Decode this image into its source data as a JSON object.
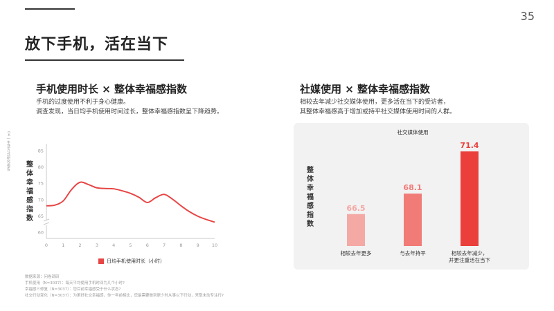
{
  "page": {
    "number": "35",
    "title": "放下手机，活在当下",
    "side_note": "04 | 生活方式研究报告"
  },
  "left": {
    "title": "手机使用时长 × 整体幸福感指数",
    "desc_lines": [
      "手机的过度使用不利于身心健康。",
      "调查发现，当日均手机使用时间过长，整体幸福感指数呈下降趋势。"
    ],
    "ylabel": "整体幸福感指数",
    "legend": "日均手机使用时长（小时）",
    "color": "#e84545"
  },
  "right": {
    "title": "社媒使用 × 整体幸福感指数",
    "desc_lines": [
      "相较去年减少社交媒体使用，更多活在当下的受访者，",
      "其整体幸福感高于增加或持平社交媒体使用时间的人群。"
    ],
    "ylabel": "整体幸福感指数"
  },
  "footnotes": [
    "数据来源：问卷调研",
    "手机使用（N=3037）：每天平均使用手机时间为几个小时?",
    "幸福感三修复（N=3037）：您目前幸福感受于什么状态?",
    "社交行动变化（N=3037）：为更好社交幸福感，你一年前相比，您最需要做到更少时从事以下行动，来取未动专注行?"
  ],
  "chart_data": [
    {
      "type": "line",
      "x": [
        0,
        0.5,
        1,
        1.5,
        2,
        2.5,
        3,
        3.5,
        4,
        4.5,
        5,
        5.5,
        6,
        6.5,
        7,
        7.5,
        8,
        8.5,
        9,
        9.5,
        10
      ],
      "series": [
        {
          "name": "日均手机使用时长（小时）",
          "values": [
            68,
            68.2,
            69.5,
            73,
            75.2,
            74.5,
            73.5,
            73.3,
            73.2,
            72.6,
            71.8,
            70.6,
            69,
            70.5,
            71.5,
            70,
            68,
            66.2,
            64.8,
            63.8,
            63
          ]
        }
      ],
      "xticks": [
        0,
        1,
        2,
        3,
        4,
        5,
        6,
        7,
        8,
        9,
        10
      ],
      "yticks": [
        60,
        65,
        70,
        75,
        80,
        85
      ],
      "ylim": [
        58,
        87
      ],
      "xlim": [
        0,
        10
      ],
      "ylabel": "整体幸福感指数",
      "grid": false,
      "legend": "bottom"
    },
    {
      "type": "bar",
      "title": "社交媒体使用",
      "categories": [
        "相较去年更多",
        "与去年持平",
        "相较去年减少，并更注重活在当下"
      ],
      "category_lines": [
        [
          "相较去年更多"
        ],
        [
          "与去年持平"
        ],
        [
          "相较去年减少，",
          "并更注重活在当下"
        ]
      ],
      "values": [
        66.5,
        68.1,
        71.4
      ],
      "value_labels": [
        "66.5",
        "68.1",
        "71.4"
      ],
      "colors": [
        "#f4a9a5",
        "#f07b77",
        "#ea3f3b"
      ],
      "ylim": [
        64,
        72
      ],
      "ylabel": "整体幸福感指数"
    }
  ]
}
